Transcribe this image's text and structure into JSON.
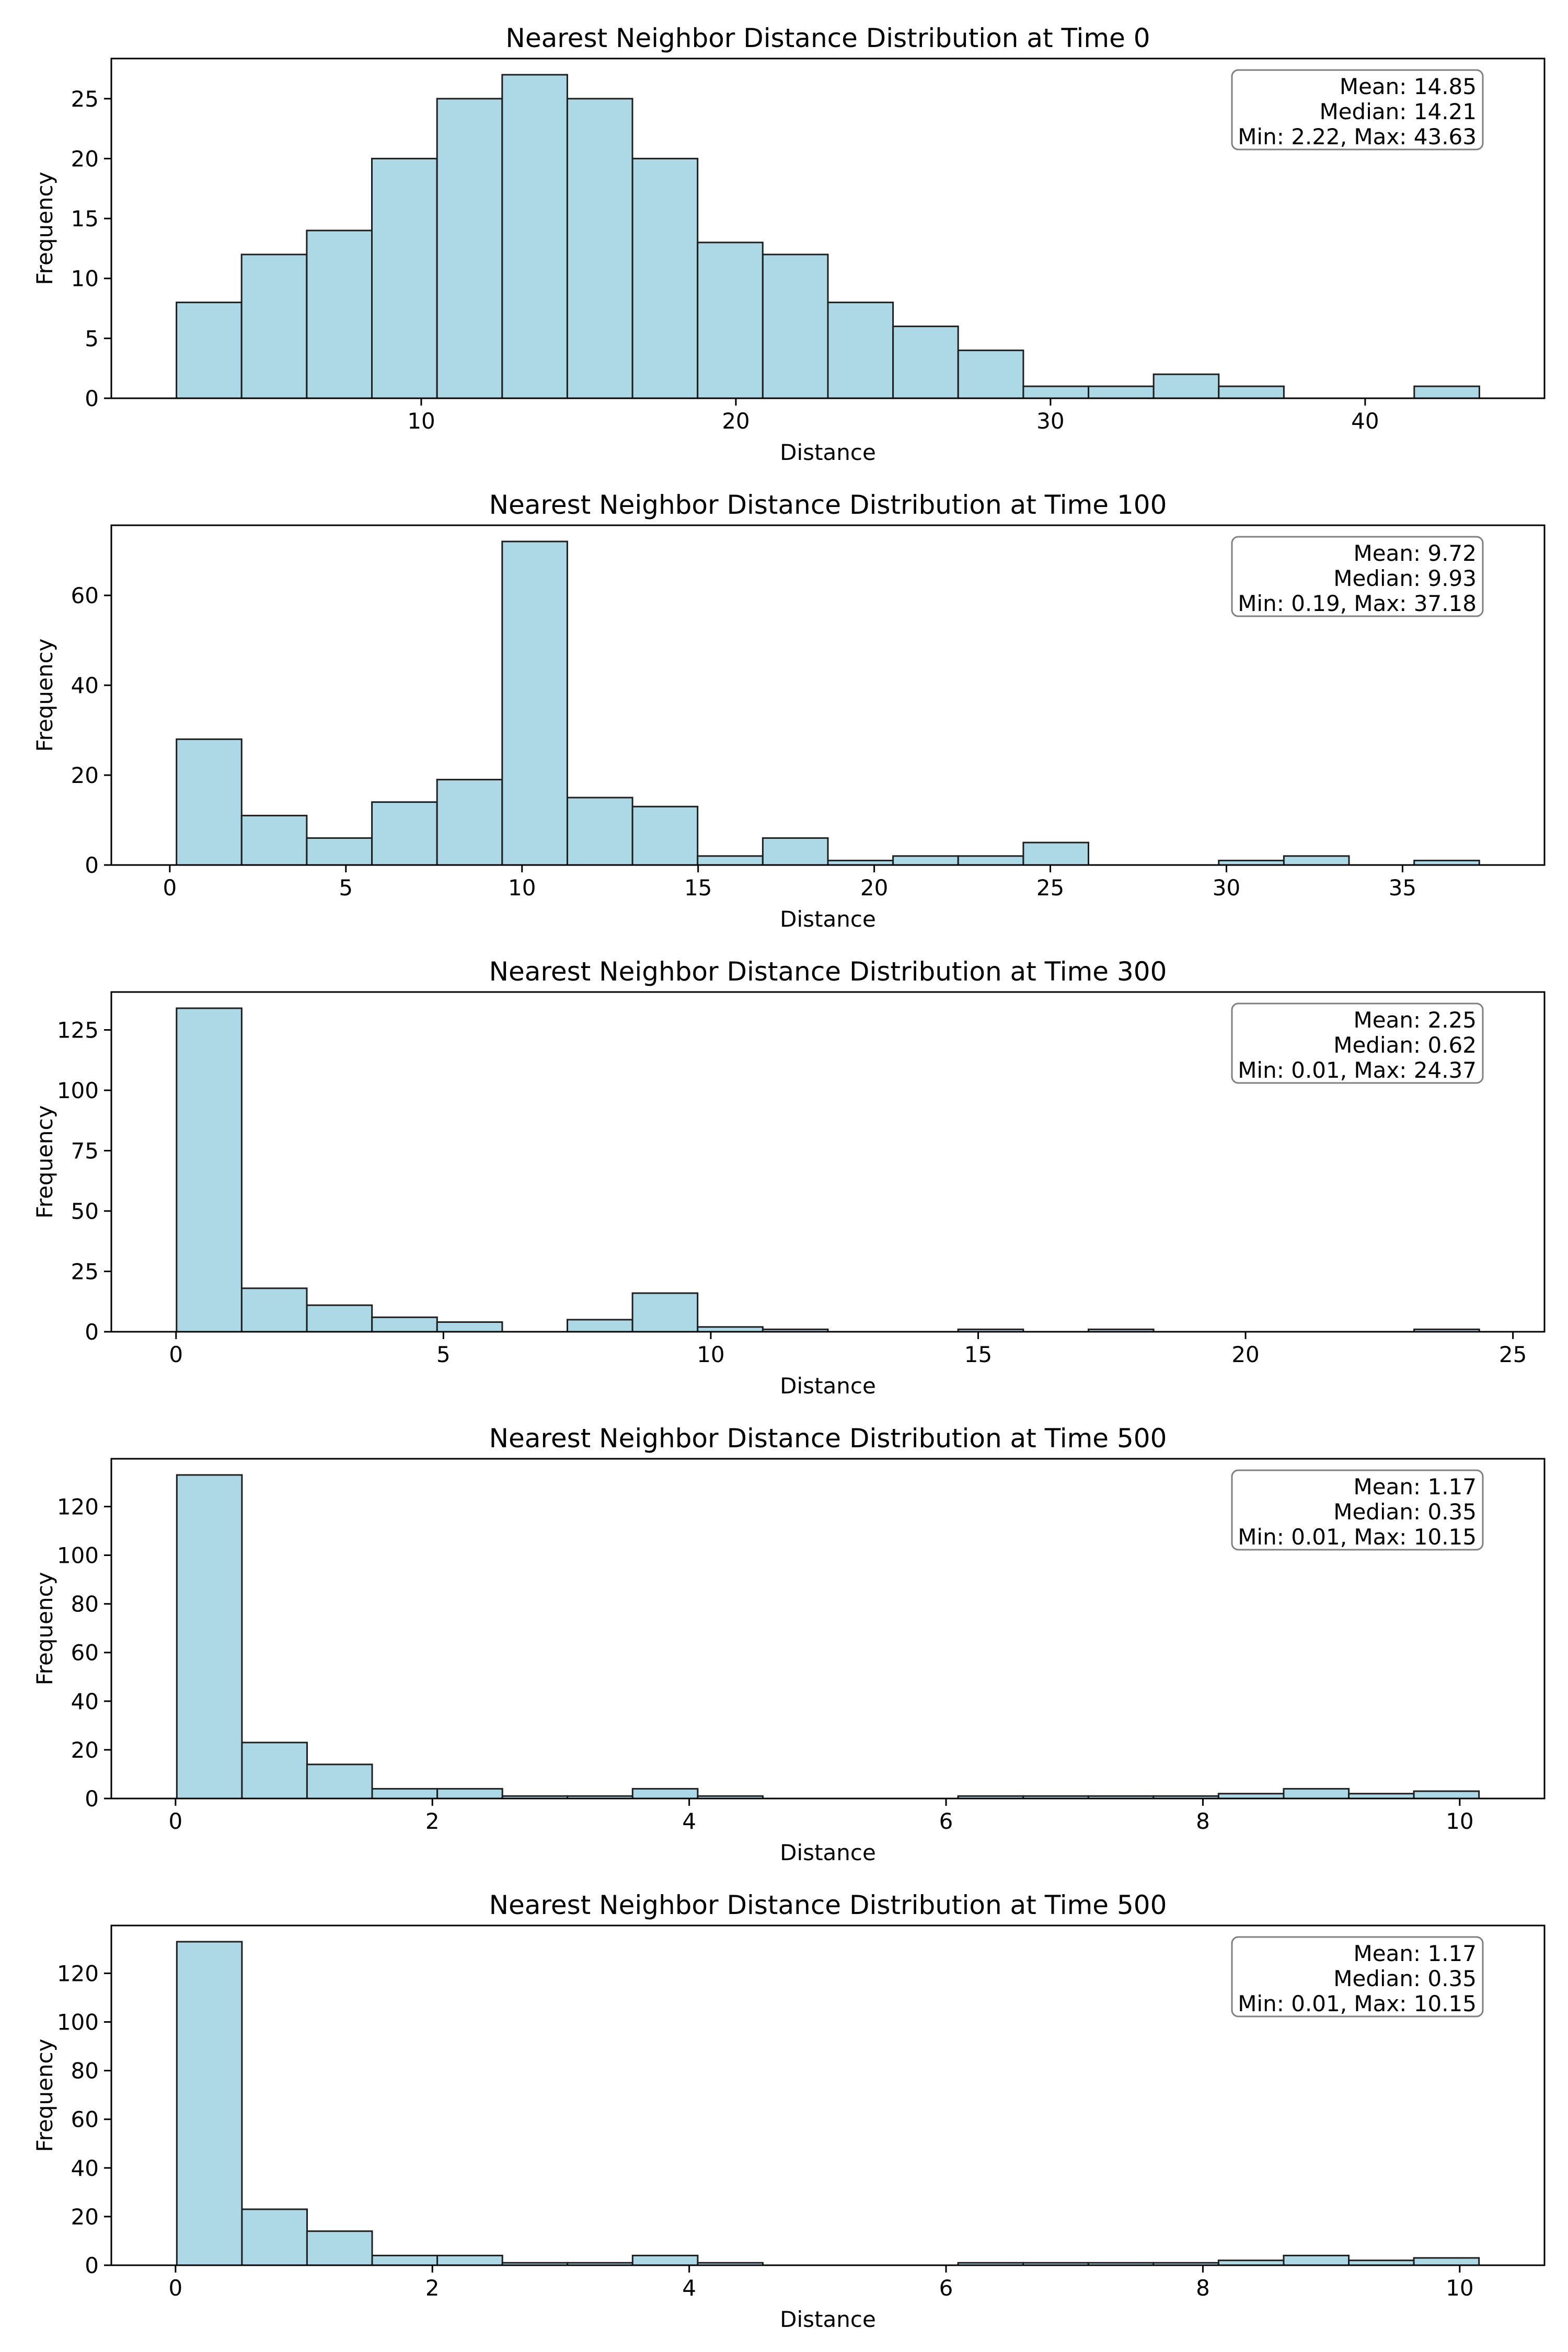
{
  "chart_data": [
    {
      "type": "bar",
      "title": "Nearest Neighbor Distance Distribution at Time 0",
      "xlabel": "Distance",
      "ylabel": "Frequency",
      "bin_start": 2.22,
      "bin_width": 2.0705,
      "values": [
        8,
        12,
        14,
        20,
        25,
        27,
        25,
        20,
        13,
        12,
        8,
        6,
        4,
        1,
        1,
        2,
        1,
        0,
        0,
        1
      ],
      "xlim": [
        0.15,
        45.7
      ],
      "ylim": [
        0,
        28.35
      ],
      "xticks": [
        10,
        20,
        30,
        40
      ],
      "xtick_labels": [
        "10",
        "20",
        "30",
        "40"
      ],
      "yticks": [
        0,
        5,
        10,
        15,
        20,
        25
      ],
      "ytick_labels": [
        "0",
        "5",
        "10",
        "15",
        "20",
        "25"
      ],
      "stats": [
        "Mean: 14.85",
        "Median: 14.21",
        "Min: 2.22, Max: 43.63"
      ],
      "bar_color": "#add8e6",
      "edge_color": "#1f1f1f"
    },
    {
      "type": "bar",
      "title": "Nearest Neighbor Distance Distribution at Time 100",
      "xlabel": "Distance",
      "ylabel": "Frequency",
      "bin_start": 0.19,
      "bin_width": 1.8495,
      "values": [
        28,
        11,
        6,
        14,
        19,
        72,
        15,
        13,
        2,
        6,
        1,
        2,
        2,
        5,
        0,
        0,
        1,
        2,
        0,
        1
      ],
      "xlim": [
        -1.66,
        39.03
      ],
      "ylim": [
        0,
        75.6
      ],
      "xticks": [
        0,
        5,
        10,
        15,
        20,
        25,
        30,
        35
      ],
      "xtick_labels": [
        "0",
        "5",
        "10",
        "15",
        "20",
        "25",
        "30",
        "35"
      ],
      "yticks": [
        0,
        20,
        40,
        60
      ],
      "ytick_labels": [
        "0",
        "20",
        "40",
        "60"
      ],
      "stats": [
        "Mean: 9.72",
        "Median: 9.93",
        "Min: 0.19, Max: 37.18"
      ],
      "bar_color": "#add8e6",
      "edge_color": "#1f1f1f"
    },
    {
      "type": "bar",
      "title": "Nearest Neighbor Distance Distribution at Time 300",
      "xlabel": "Distance",
      "ylabel": "Frequency",
      "bin_start": 0.01,
      "bin_width": 1.218,
      "values": [
        134,
        18,
        11,
        6,
        4,
        0,
        5,
        16,
        2,
        1,
        0,
        0,
        1,
        0,
        1,
        0,
        0,
        0,
        0,
        1
      ],
      "xlim": [
        -1.21,
        25.59
      ],
      "ylim": [
        0,
        140.7
      ],
      "xticks": [
        0,
        5,
        10,
        15,
        20,
        25
      ],
      "xtick_labels": [
        "0",
        "5",
        "10",
        "15",
        "20",
        "25"
      ],
      "yticks": [
        0,
        25,
        50,
        75,
        100,
        125
      ],
      "ytick_labels": [
        "0",
        "25",
        "50",
        "75",
        "100",
        "125"
      ],
      "stats": [
        "Mean: 2.25",
        "Median: 0.62",
        "Min: 0.01, Max: 24.37"
      ],
      "bar_color": "#add8e6",
      "edge_color": "#1f1f1f"
    },
    {
      "type": "bar",
      "title": "Nearest Neighbor Distance Distribution at Time 500",
      "xlabel": "Distance",
      "ylabel": "Frequency",
      "bin_start": 0.01,
      "bin_width": 0.507,
      "values": [
        133,
        23,
        14,
        4,
        4,
        1,
        1,
        4,
        1,
        0,
        0,
        0,
        1,
        1,
        1,
        1,
        2,
        4,
        2,
        3
      ],
      "xlim": [
        -0.5,
        10.66
      ],
      "ylim": [
        0,
        139.65
      ],
      "xticks": [
        0,
        2,
        4,
        6,
        8,
        10
      ],
      "xtick_labels": [
        "0",
        "2",
        "4",
        "6",
        "8",
        "10"
      ],
      "yticks": [
        0,
        20,
        40,
        60,
        80,
        100,
        120
      ],
      "ytick_labels": [
        "0",
        "20",
        "40",
        "60",
        "80",
        "100",
        "120"
      ],
      "stats": [
        "Mean: 1.17",
        "Median: 0.35",
        "Min: 0.01, Max: 10.15"
      ],
      "bar_color": "#add8e6",
      "edge_color": "#1f1f1f"
    },
    {
      "type": "bar",
      "title": "Nearest Neighbor Distance Distribution at Time 500",
      "xlabel": "Distance",
      "ylabel": "Frequency",
      "bin_start": 0.01,
      "bin_width": 0.507,
      "values": [
        133,
        23,
        14,
        4,
        4,
        1,
        1,
        4,
        1,
        0,
        0,
        0,
        1,
        1,
        1,
        1,
        2,
        4,
        2,
        3
      ],
      "xlim": [
        -0.5,
        10.66
      ],
      "ylim": [
        0,
        139.65
      ],
      "xticks": [
        0,
        2,
        4,
        6,
        8,
        10
      ],
      "xtick_labels": [
        "0",
        "2",
        "4",
        "6",
        "8",
        "10"
      ],
      "yticks": [
        0,
        20,
        40,
        60,
        80,
        100,
        120
      ],
      "ytick_labels": [
        "0",
        "20",
        "40",
        "60",
        "80",
        "100",
        "120"
      ],
      "stats": [
        "Mean: 1.17",
        "Median: 0.35",
        "Min: 0.01, Max: 10.15"
      ],
      "bar_color": "#add8e6",
      "edge_color": "#1f1f1f"
    }
  ]
}
